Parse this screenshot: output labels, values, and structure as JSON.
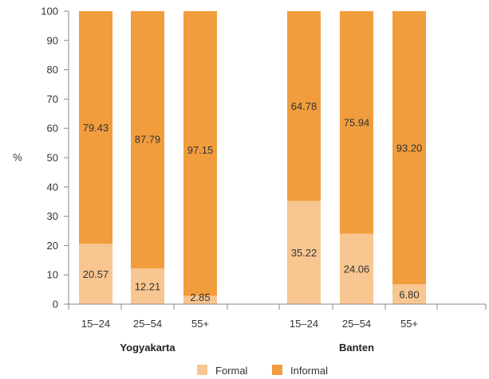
{
  "chart_data": {
    "type": "bar",
    "stacked": true,
    "ylabel": "%",
    "ylim": [
      0,
      100
    ],
    "yticks": [
      "0",
      "10",
      "20",
      "30",
      "40",
      "50",
      "60",
      "70",
      "80",
      "90",
      "100"
    ],
    "groups": [
      {
        "name": "Yogyakarta",
        "categories": [
          "15–24",
          "25–54",
          "55+"
        ]
      },
      {
        "name": "Banten",
        "categories": [
          "15–24",
          "25–54",
          "55+"
        ]
      }
    ],
    "series": [
      {
        "name": "Formal",
        "color": "#f8c690",
        "values": [
          20.57,
          12.21,
          2.85,
          35.22,
          24.06,
          6.8
        ],
        "labels": [
          "20.57",
          "12.21",
          "2.85",
          "35.22",
          "24.06",
          "6.80"
        ]
      },
      {
        "name": "Informal",
        "color": "#f29d3d",
        "values": [
          79.43,
          87.79,
          97.15,
          64.78,
          75.94,
          93.2
        ],
        "labels": [
          "79.43",
          "87.79",
          "97.15",
          "64.78",
          "75.94",
          "93.20"
        ]
      }
    ],
    "legend_position": "bottom-center",
    "grid": false
  }
}
